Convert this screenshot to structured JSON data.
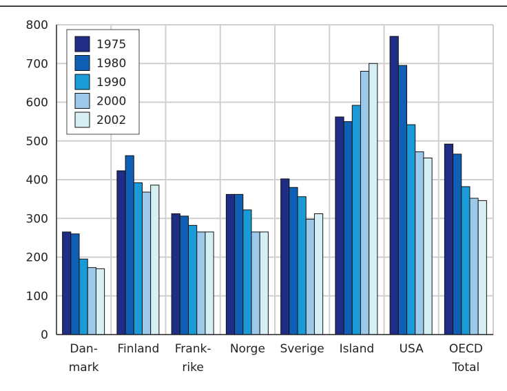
{
  "chart_data": {
    "type": "bar",
    "categories": [
      [
        "Dan-",
        "mark"
      ],
      [
        "Finland"
      ],
      [
        "Frank-",
        "rike"
      ],
      [
        "Norge"
      ],
      [
        "Sverige"
      ],
      [
        "Island"
      ],
      [
        "USA"
      ],
      [
        "OECD",
        "Total"
      ]
    ],
    "series": [
      {
        "name": "1975",
        "color": "#1f2d86",
        "values": [
          265,
          423,
          312,
          362,
          402,
          562,
          770,
          492
        ]
      },
      {
        "name": "1980",
        "color": "#0f5fb4",
        "values": [
          260,
          462,
          306,
          362,
          380,
          550,
          695,
          466
        ]
      },
      {
        "name": "1990",
        "color": "#1a9ad6",
        "values": [
          195,
          392,
          282,
          322,
          356,
          592,
          542,
          382
        ]
      },
      {
        "name": "2000",
        "color": "#9cc8ea",
        "values": [
          173,
          368,
          265,
          265,
          298,
          680,
          472,
          352
        ]
      },
      {
        "name": "2002",
        "color": "#d6eff5",
        "values": [
          170,
          386,
          265,
          265,
          312,
          700,
          456,
          346
        ]
      }
    ],
    "ylim": [
      0,
      800
    ],
    "yticks": [
      0,
      100,
      200,
      300,
      400,
      500,
      600,
      700,
      800
    ],
    "grid": true,
    "legend": "top-left",
    "title": "",
    "xlabel": "",
    "ylabel": ""
  }
}
